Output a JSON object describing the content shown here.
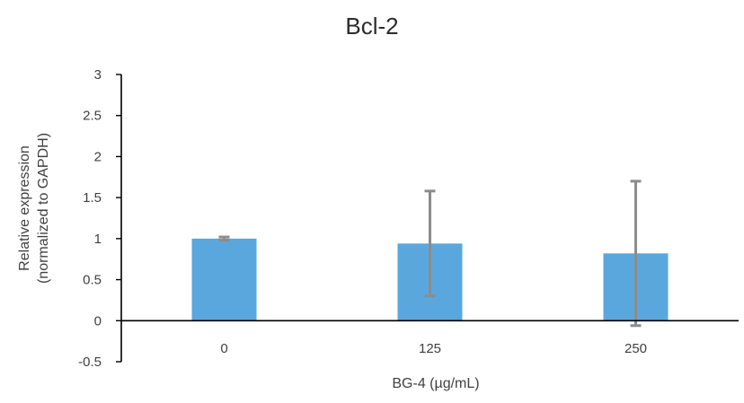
{
  "chart_data": {
    "type": "bar",
    "title": "Bcl-2",
    "xlabel": "BG-4 (µg/mL)",
    "ylabel_lines": [
      "Relative expression",
      "(normalized to GAPDH)"
    ],
    "categories": [
      "0",
      "125",
      "250"
    ],
    "series": [
      {
        "values": [
          1.0,
          0.94,
          0.82
        ],
        "error": [
          0.02,
          0.64,
          0.88
        ],
        "color": "#5aa7de"
      }
    ],
    "ylim": [
      -0.5,
      3
    ],
    "yticks": [
      "3",
      "2.5",
      "2",
      "1.5",
      "1",
      "0.5",
      "0",
      "-0.5"
    ],
    "ytick_values": [
      3,
      2.5,
      2,
      1.5,
      1,
      0.5,
      0,
      -0.5
    ],
    "grid": false,
    "legend": "none"
  }
}
